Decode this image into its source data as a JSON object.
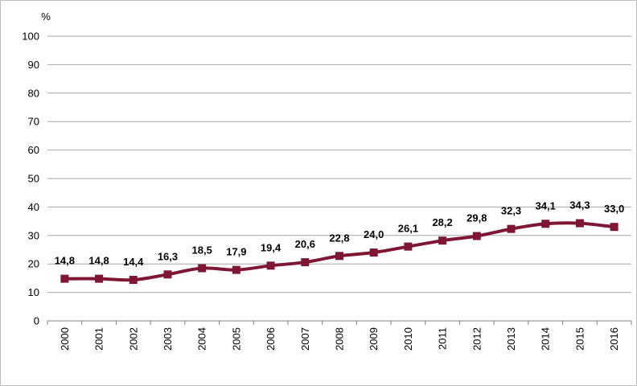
{
  "chart_data": {
    "type": "line",
    "title": "",
    "xlabel": "",
    "ylabel": "",
    "unit_label": "%",
    "ylim": [
      0,
      100
    ],
    "ytick_step": 10,
    "grid": true,
    "legend": "none",
    "decimal_separator": ",",
    "x": [
      "2000",
      "2001",
      "2002",
      "2003",
      "2004",
      "2005",
      "2006",
      "2007",
      "2008",
      "2009",
      "2010",
      "2011",
      "2012",
      "2013",
      "2014",
      "2015",
      "2016"
    ],
    "series": [
      {
        "values": [
          14.8,
          14.8,
          14.4,
          16.3,
          18.5,
          17.9,
          19.4,
          20.6,
          22.8,
          24.0,
          26.1,
          28.2,
          29.8,
          32.3,
          34.1,
          34.3,
          33.0
        ],
        "labels": [
          "14,8",
          "14,8",
          "14,4",
          "16,3",
          "18,5",
          "17,9",
          "19,4",
          "20,6",
          "22,8",
          "24,0",
          "26,1",
          "28,2",
          "29,8",
          "32,3",
          "34,1",
          "34,3",
          "33,0"
        ],
        "color": "#7f1734",
        "marker": "square"
      }
    ]
  }
}
